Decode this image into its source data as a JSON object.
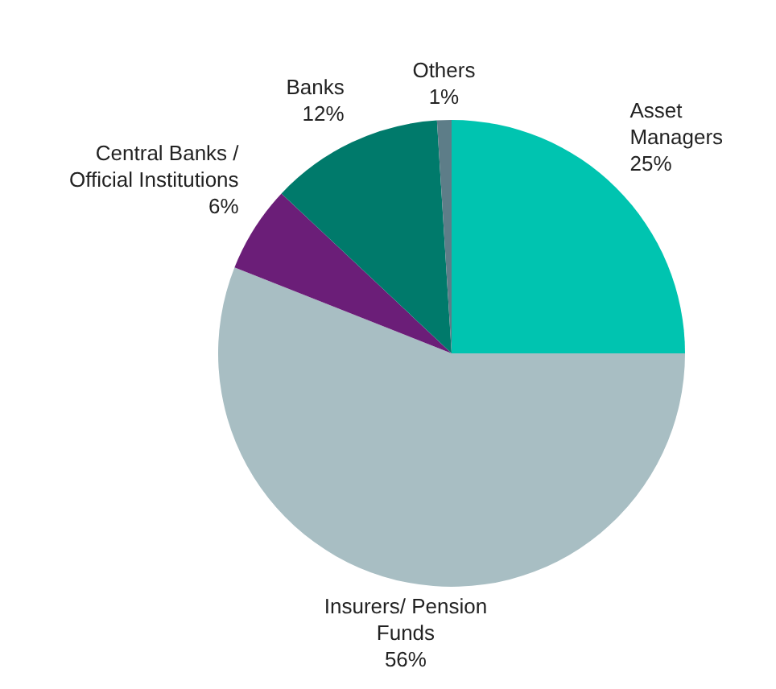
{
  "chart_data": {
    "type": "pie",
    "categories": [
      "Asset\nManagers",
      "Insurers/ Pension\nFunds",
      "Central Banks /\nOfficial Institutions",
      "Banks",
      "Others"
    ],
    "values": [
      25,
      56,
      6,
      12,
      1
    ],
    "value_labels": [
      "25%",
      "56%",
      "6%",
      "12%",
      "1%"
    ],
    "colors": [
      "#00c4b0",
      "#a8bec3",
      "#6b1e78",
      "#007a6b",
      "#5d7d88"
    ],
    "legend": false
  }
}
